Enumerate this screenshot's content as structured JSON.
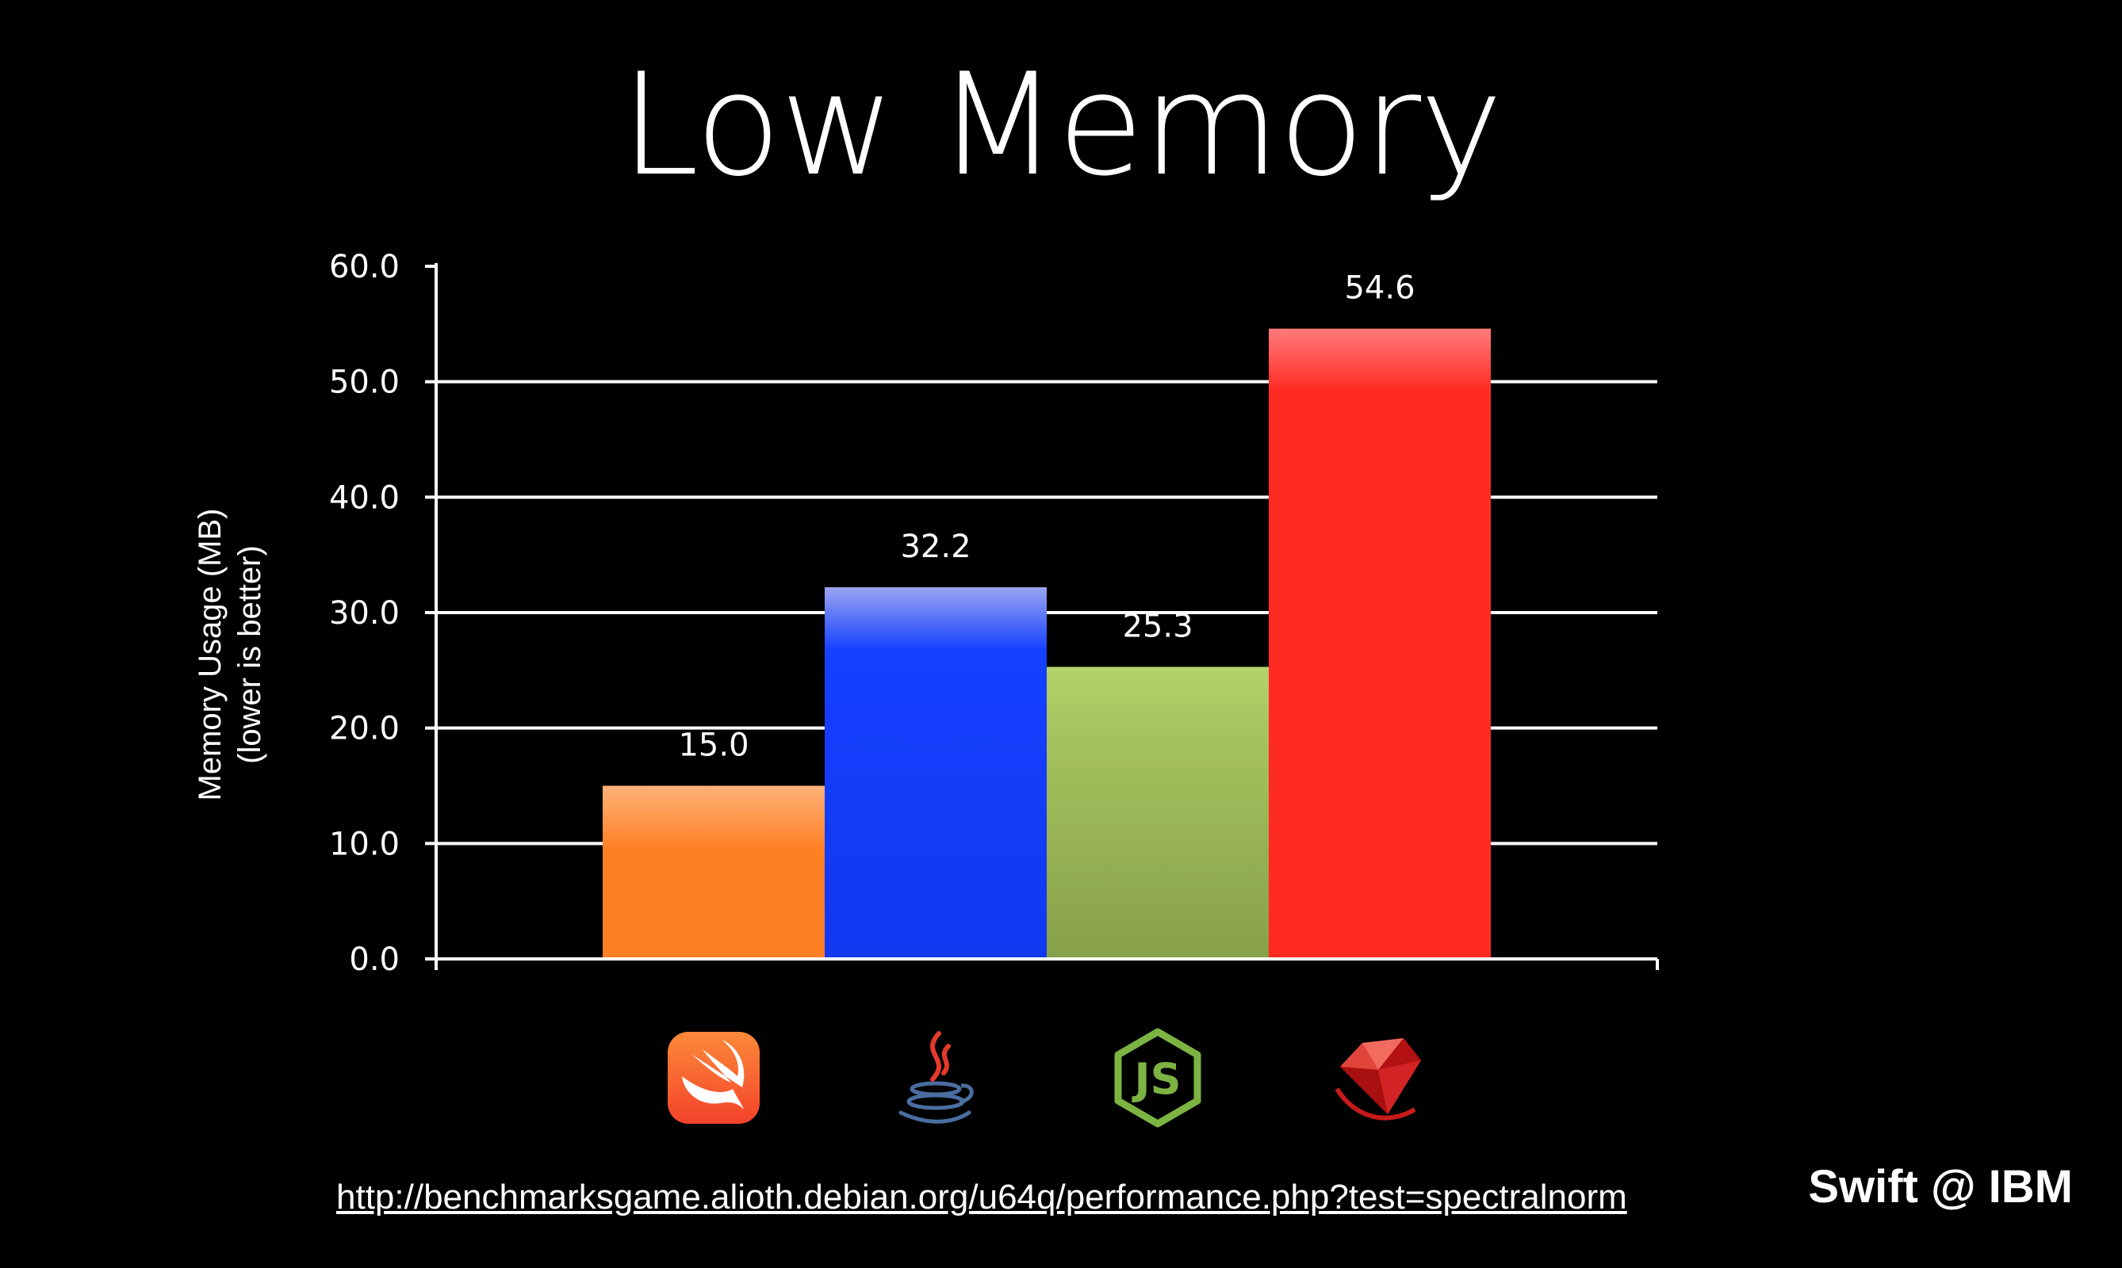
{
  "slide": {
    "title": "Low Memory",
    "source_url": "http://benchmarksgame.alioth.debian.org/u64q/performance.php?test=spectralnorm",
    "brand": "Swift @ IBM"
  },
  "chart_data": {
    "type": "bar",
    "title": "Low Memory",
    "ylabel_lines": [
      "Memory Usage (MB)",
      "(lower is better)"
    ],
    "ylim": [
      0,
      60
    ],
    "yticks": [
      0,
      10,
      20,
      30,
      40,
      50,
      60
    ],
    "ytick_labels": [
      "0.0",
      "10.0",
      "20.0",
      "30.0",
      "40.0",
      "50.0",
      "60.0"
    ],
    "grid": true,
    "categories": [
      "Swift",
      "Java",
      "Node.js",
      "Ruby"
    ],
    "category_icons": [
      "swift-icon",
      "java-icon",
      "nodejs-icon",
      "ruby-icon"
    ],
    "values": [
      15.0,
      32.2,
      25.3,
      54.6
    ],
    "value_labels": [
      "15.0",
      "32.2",
      "25.3",
      "54.6"
    ],
    "colors": [
      {
        "top": "#ffb27a",
        "main": "#ff7f24",
        "bottom": "#ff7f24"
      },
      {
        "top": "#9aa4f0",
        "main": "#1440ff",
        "bottom": "#1238f0"
      },
      {
        "top": "#b2d46a",
        "main": "#a6c45e",
        "bottom": "#86a04a"
      },
      {
        "top": "#ff7a7a",
        "main": "#ff2a22",
        "bottom": "#ff2a22"
      }
    ]
  }
}
